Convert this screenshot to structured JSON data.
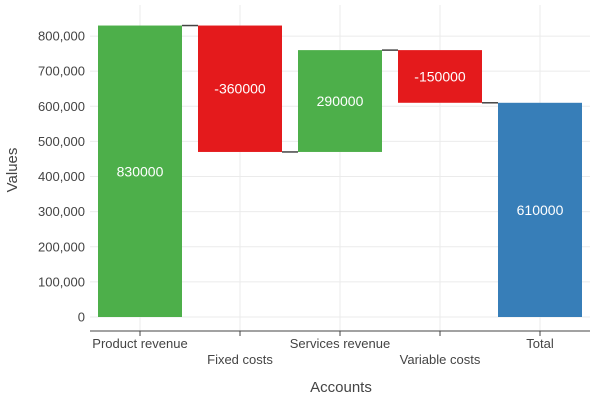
{
  "chart_data": {
    "type": "waterfall",
    "xlabel": "Accounts",
    "ylabel": "Values",
    "categories": [
      "Product revenue",
      "Fixed costs",
      "Services revenue",
      "Variable costs",
      "Total"
    ],
    "values": [
      830000,
      -360000,
      290000,
      -150000,
      610000
    ],
    "measures": [
      "relative",
      "relative",
      "relative",
      "relative",
      "total"
    ],
    "data_labels": [
      "830000",
      "-360000",
      "290000",
      "-150000",
      "610000"
    ],
    "ylim": [
      0,
      860000
    ],
    "yticks": [
      0,
      100000,
      200000,
      300000,
      400000,
      500000,
      600000,
      700000,
      800000
    ],
    "ytick_labels": [
      "0",
      "100,000",
      "200,000",
      "300,000",
      "400,000",
      "500,000",
      "600,000",
      "700,000",
      "800,000"
    ],
    "colors": {
      "increase": "#4daf4a",
      "decrease": "#e41a1c",
      "total": "#377eb8",
      "connector": "#444444",
      "grid": "#ebebeb"
    },
    "grid": true,
    "legend": false
  }
}
